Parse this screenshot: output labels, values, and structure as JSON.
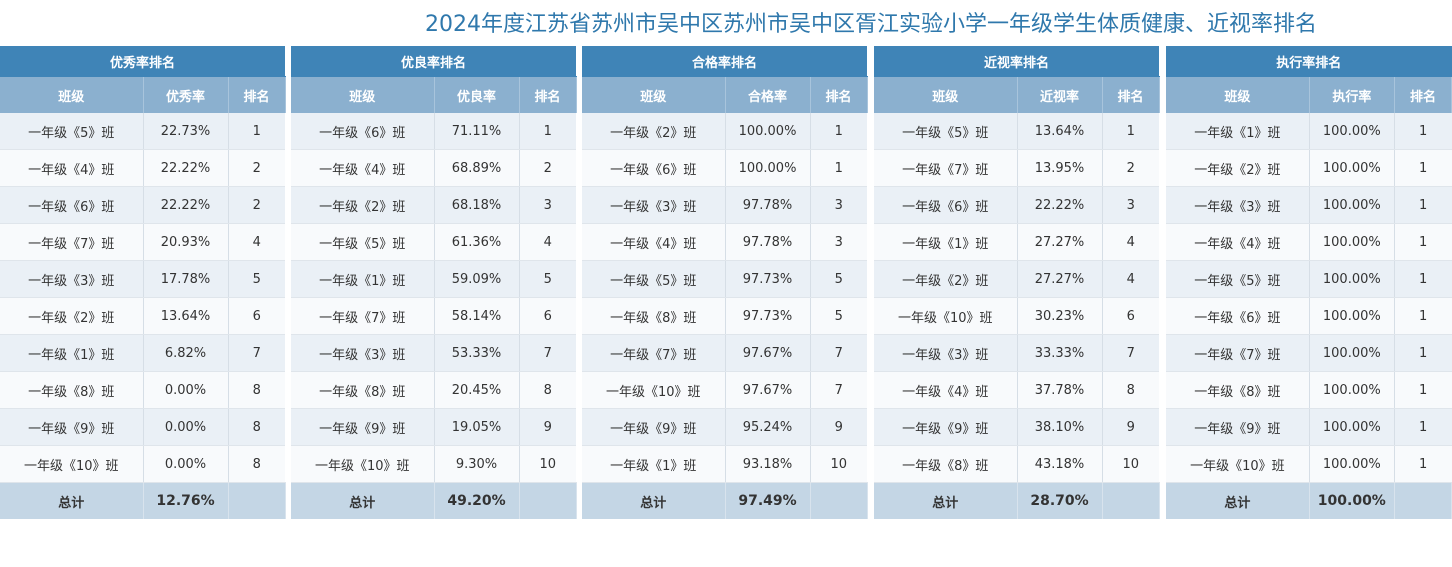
{
  "title": "2024年度江苏省苏州市吴中区苏州市吴中区胥江实验小学一年级学生体质健康、近视率排名",
  "tables": [
    {
      "group_title": "优秀率排名",
      "headers": [
        "班级",
        "优秀率",
        "排名"
      ],
      "rows": [
        [
          "一年级《5》班",
          "22.73%",
          "1"
        ],
        [
          "一年级《4》班",
          "22.22%",
          "2"
        ],
        [
          "一年级《6》班",
          "22.22%",
          "2"
        ],
        [
          "一年级《7》班",
          "20.93%",
          "4"
        ],
        [
          "一年级《3》班",
          "17.78%",
          "5"
        ],
        [
          "一年级《2》班",
          "13.64%",
          "6"
        ],
        [
          "一年级《1》班",
          "6.82%",
          "7"
        ],
        [
          "一年级《8》班",
          "0.00%",
          "8"
        ],
        [
          "一年级《9》班",
          "0.00%",
          "8"
        ],
        [
          "一年级《10》班",
          "0.00%",
          "8"
        ]
      ],
      "total_label": "总计",
      "total_value": "12.76%"
    },
    {
      "group_title": "优良率排名",
      "headers": [
        "班级",
        "优良率",
        "排名"
      ],
      "rows": [
        [
          "一年级《6》班",
          "71.11%",
          "1"
        ],
        [
          "一年级《4》班",
          "68.89%",
          "2"
        ],
        [
          "一年级《2》班",
          "68.18%",
          "3"
        ],
        [
          "一年级《5》班",
          "61.36%",
          "4"
        ],
        [
          "一年级《1》班",
          "59.09%",
          "5"
        ],
        [
          "一年级《7》班",
          "58.14%",
          "6"
        ],
        [
          "一年级《3》班",
          "53.33%",
          "7"
        ],
        [
          "一年级《8》班",
          "20.45%",
          "8"
        ],
        [
          "一年级《9》班",
          "19.05%",
          "9"
        ],
        [
          "一年级《10》班",
          "9.30%",
          "10"
        ]
      ],
      "total_label": "总计",
      "total_value": "49.20%"
    },
    {
      "group_title": "合格率排名",
      "headers": [
        "班级",
        "合格率",
        "排名"
      ],
      "rows": [
        [
          "一年级《2》班",
          "100.00%",
          "1"
        ],
        [
          "一年级《6》班",
          "100.00%",
          "1"
        ],
        [
          "一年级《3》班",
          "97.78%",
          "3"
        ],
        [
          "一年级《4》班",
          "97.78%",
          "3"
        ],
        [
          "一年级《5》班",
          "97.73%",
          "5"
        ],
        [
          "一年级《8》班",
          "97.73%",
          "5"
        ],
        [
          "一年级《7》班",
          "97.67%",
          "7"
        ],
        [
          "一年级《10》班",
          "97.67%",
          "7"
        ],
        [
          "一年级《9》班",
          "95.24%",
          "9"
        ],
        [
          "一年级《1》班",
          "93.18%",
          "10"
        ]
      ],
      "total_label": "总计",
      "total_value": "97.49%"
    },
    {
      "group_title": "近视率排名",
      "headers": [
        "班级",
        "近视率",
        "排名"
      ],
      "rows": [
        [
          "一年级《5》班",
          "13.64%",
          "1"
        ],
        [
          "一年级《7》班",
          "13.95%",
          "2"
        ],
        [
          "一年级《6》班",
          "22.22%",
          "3"
        ],
        [
          "一年级《1》班",
          "27.27%",
          "4"
        ],
        [
          "一年级《2》班",
          "27.27%",
          "4"
        ],
        [
          "一年级《10》班",
          "30.23%",
          "6"
        ],
        [
          "一年级《3》班",
          "33.33%",
          "7"
        ],
        [
          "一年级《4》班",
          "37.78%",
          "8"
        ],
        [
          "一年级《9》班",
          "38.10%",
          "9"
        ],
        [
          "一年级《8》班",
          "43.18%",
          "10"
        ]
      ],
      "total_label": "总计",
      "total_value": "28.70%"
    },
    {
      "group_title": "执行率排名",
      "headers": [
        "班级",
        "执行率",
        "排名"
      ],
      "rows": [
        [
          "一年级《1》班",
          "100.00%",
          "1"
        ],
        [
          "一年级《2》班",
          "100.00%",
          "1"
        ],
        [
          "一年级《3》班",
          "100.00%",
          "1"
        ],
        [
          "一年级《4》班",
          "100.00%",
          "1"
        ],
        [
          "一年级《5》班",
          "100.00%",
          "1"
        ],
        [
          "一年级《6》班",
          "100.00%",
          "1"
        ],
        [
          "一年级《7》班",
          "100.00%",
          "1"
        ],
        [
          "一年级《8》班",
          "100.00%",
          "1"
        ],
        [
          "一年级《9》班",
          "100.00%",
          "1"
        ],
        [
          "一年级《10》班",
          "100.00%",
          "1"
        ]
      ],
      "total_label": "总计",
      "total_value": "100.00%"
    }
  ]
}
